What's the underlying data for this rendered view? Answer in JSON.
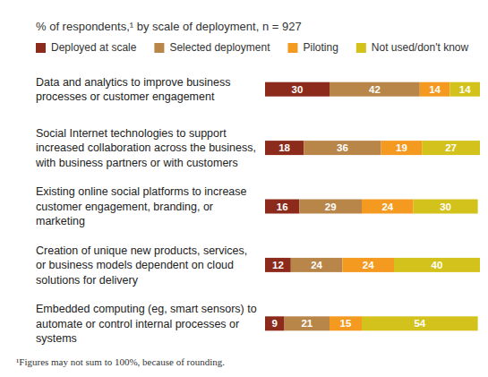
{
  "chart_data": {
    "type": "bar",
    "orientation": "horizontal",
    "stacked": true,
    "data_labels": true,
    "tick_labels": false,
    "legend": "top",
    "subtitle": "% of respondents,¹ by scale of deployment, n = 927",
    "annotations": [
      "¹Figures may not sum to 100%, because of rounding."
    ],
    "categories": [
      "Data and analytics to improve business processes or customer engagement",
      "Social Internet technologies to support increased collaboration across the business, with business partners or with customers",
      "Existing online social platforms to increase customer engagement, branding, or marketing",
      "Creation of unique new products, services, or business models dependent on cloud solutions for delivery",
      "Embedded computing (eg, smart sensors) to automate or control internal processes or systems"
    ],
    "xlim": [
      0,
      100
    ],
    "series": [
      {
        "name": "Deployed at scale",
        "color": "#8c2b1b",
        "values": [
          30,
          18,
          16,
          12,
          9
        ]
      },
      {
        "name": "Selected deployment",
        "color": "#b9864a",
        "values": [
          42,
          36,
          29,
          24,
          21
        ]
      },
      {
        "name": "Piloting",
        "color": "#f49a21",
        "values": [
          14,
          19,
          24,
          24,
          15
        ]
      },
      {
        "name": "Not used/don't know",
        "color": "#d3c21c",
        "values": [
          14,
          27,
          30,
          40,
          54
        ]
      }
    ]
  }
}
